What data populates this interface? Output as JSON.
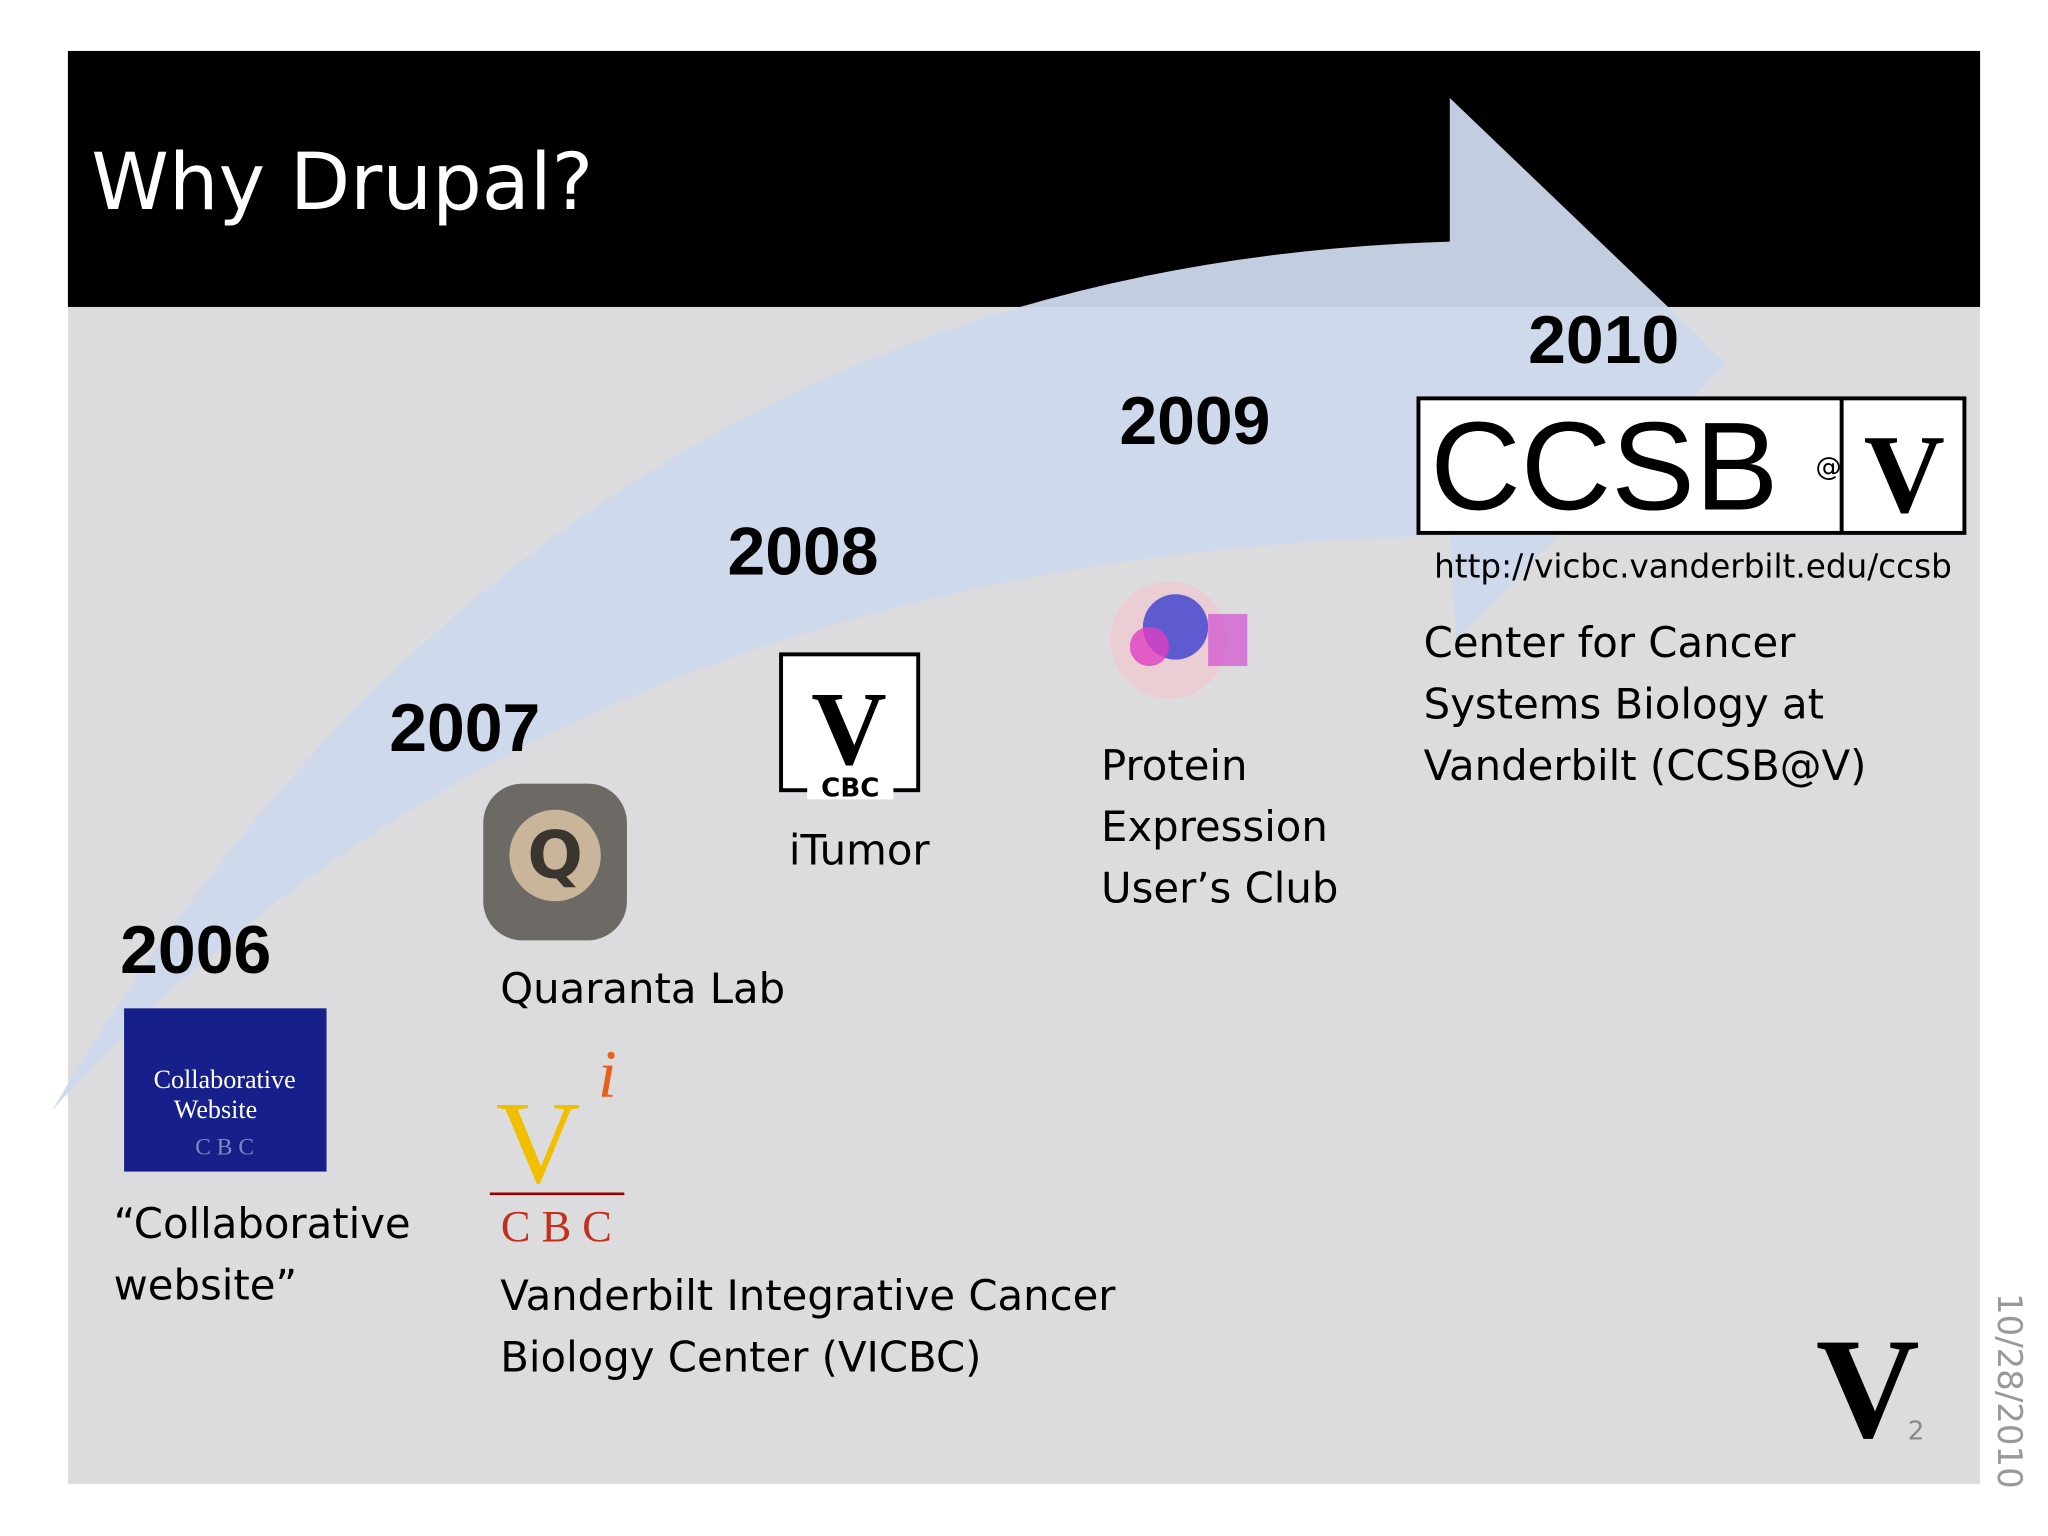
{
  "slide": {
    "title": "Why Drupal?",
    "milestones": [
      {
        "year": "2006",
        "label_lines": [
          "“Collaborative",
          "website”"
        ],
        "logo_lines": [
          "Collaborative",
          "Website",
          "C B C"
        ]
      },
      {
        "year": "2007",
        "label_lines": [
          "Quaranta Lab"
        ],
        "logo_lines": [
          "Q"
        ]
      },
      {
        "year": "2007",
        "label_lines": [
          "Vanderbilt Integrative Cancer",
          "Biology Center (VICBC)"
        ],
        "logo_lines": [
          "V",
          "i",
          "C B C"
        ]
      },
      {
        "year": "2008",
        "label_lines": [
          "iTumor"
        ],
        "logo_lines": [
          "V",
          "CBC"
        ]
      },
      {
        "year": "2009",
        "label_lines": [
          "Protein",
          "Expression",
          "User’s Club"
        ]
      },
      {
        "year": "2010",
        "label_lines": [
          "Center for Cancer",
          "Systems Biology at",
          "Vanderbilt (CCSB@V)"
        ],
        "logo_lines": [
          "CCSB",
          "@",
          "V"
        ],
        "url": "http://vicbc.vanderbilt.edu/ccsb"
      }
    ],
    "date": "10/28/2010",
    "page_number": "2",
    "footer_logo": "V"
  }
}
